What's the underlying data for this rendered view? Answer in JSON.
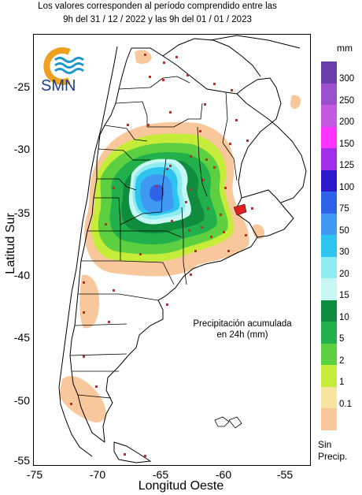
{
  "header": {
    "line1": "Los valores corresponden al período comprendido entre las",
    "line2": "9h del 31 / 12 / 2022  y las 9h del 01 / 01 / 2023"
  },
  "logo": {
    "text": "SMN",
    "colors": {
      "ring": "#f0a020",
      "waves": "#1c98cc"
    }
  },
  "annotation": {
    "line1": "Precipitación acumulada",
    "line2": "en 24h (mm)"
  },
  "axes": {
    "x_label": "Longitud Oeste",
    "y_label": "Latitud Sur",
    "x_ticks": [
      "-75",
      "-70",
      "-65",
      "-60",
      "-55"
    ],
    "y_ticks": [
      "-25",
      "-30",
      "-35",
      "-40",
      "-45",
      "-50",
      "-55"
    ]
  },
  "legend": {
    "unit": "mm",
    "levels": [
      {
        "label": "300",
        "color": "#6a3daa"
      },
      {
        "label": "250",
        "color": "#9a4fcc"
      },
      {
        "label": "200",
        "color": "#c25ae0"
      },
      {
        "label": "150",
        "color": "#ff33ff"
      },
      {
        "label": "125",
        "color": "#9f2fe6"
      },
      {
        "label": "100",
        "color": "#2a1ac8"
      },
      {
        "label": "75",
        "color": "#2e62e8"
      },
      {
        "label": "50",
        "color": "#3f98f2"
      },
      {
        "label": "30",
        "color": "#2ec4f0"
      },
      {
        "label": "20",
        "color": "#8cecf2"
      },
      {
        "label": "15",
        "color": "#c8f8f4"
      },
      {
        "label": "10",
        "color": "#0f8c3e"
      },
      {
        "label": "5",
        "color": "#22b04c"
      },
      {
        "label": "2",
        "color": "#5cd040"
      },
      {
        "label": "1",
        "color": "#c6ec3a"
      },
      {
        "label": "0.1",
        "color": "#f6e4a0"
      },
      {
        "label": "",
        "color": "#f8c89c"
      }
    ],
    "no_precip_line1": "Sin",
    "no_precip_line2": "Precip."
  },
  "map_colors": {
    "land": "#ffffff",
    "borders": "#000000",
    "stations": "#e02020"
  }
}
